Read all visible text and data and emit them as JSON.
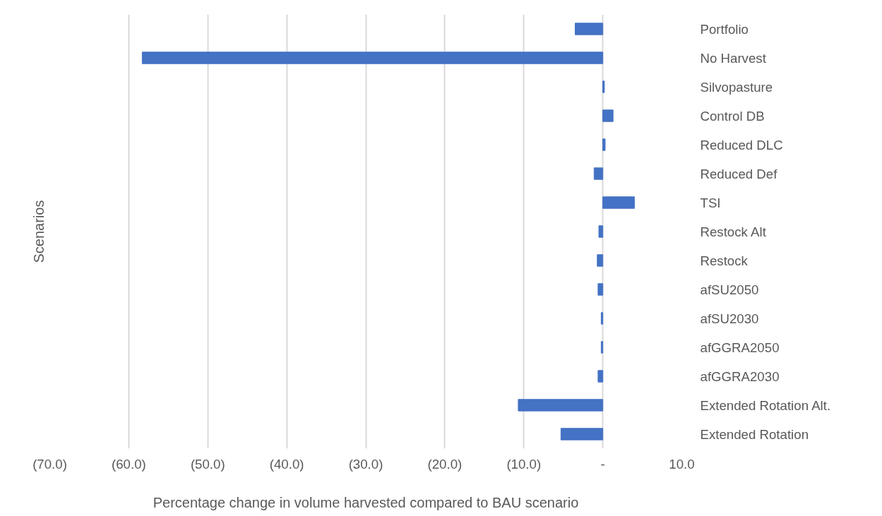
{
  "chart_data": {
    "type": "bar",
    "orientation": "horizontal",
    "ylabel": "Scenarios",
    "xlabel": "Percentage change in volume harvested compared to BAU scenario",
    "categories": [
      "Portfolio",
      "No Harvest",
      "Silvopasture",
      "Control DB",
      "Reduced DLC",
      "Reduced Def",
      "TSI",
      "Restock Alt",
      "Restock",
      "afSU2050",
      "afSU2030",
      "afGGRA2050",
      "afGGRA2030",
      "Extended Rotation Alt.",
      "Extended Rotation"
    ],
    "values": [
      -3.5,
      -58.3,
      0.2,
      1.3,
      0.3,
      -1.1,
      4.0,
      -0.5,
      -0.7,
      -0.6,
      -0.2,
      -0.2,
      -0.6,
      -10.7,
      -5.3
    ],
    "color": "#4472c4",
    "xlim": [
      -70,
      10
    ],
    "xticks": [
      {
        "value": -70,
        "label": "(70.0)"
      },
      {
        "value": -60,
        "label": "(60.0)"
      },
      {
        "value": -50,
        "label": "(50.0)"
      },
      {
        "value": -40,
        "label": "(40.0)"
      },
      {
        "value": -30,
        "label": "(30.0)"
      },
      {
        "value": -20,
        "label": "(20.0)"
      },
      {
        "value": -10,
        "label": "(10.0)"
      },
      {
        "value": 0,
        "label": "-"
      },
      {
        "value": 10,
        "label": "10.0"
      }
    ],
    "grid": "x"
  }
}
